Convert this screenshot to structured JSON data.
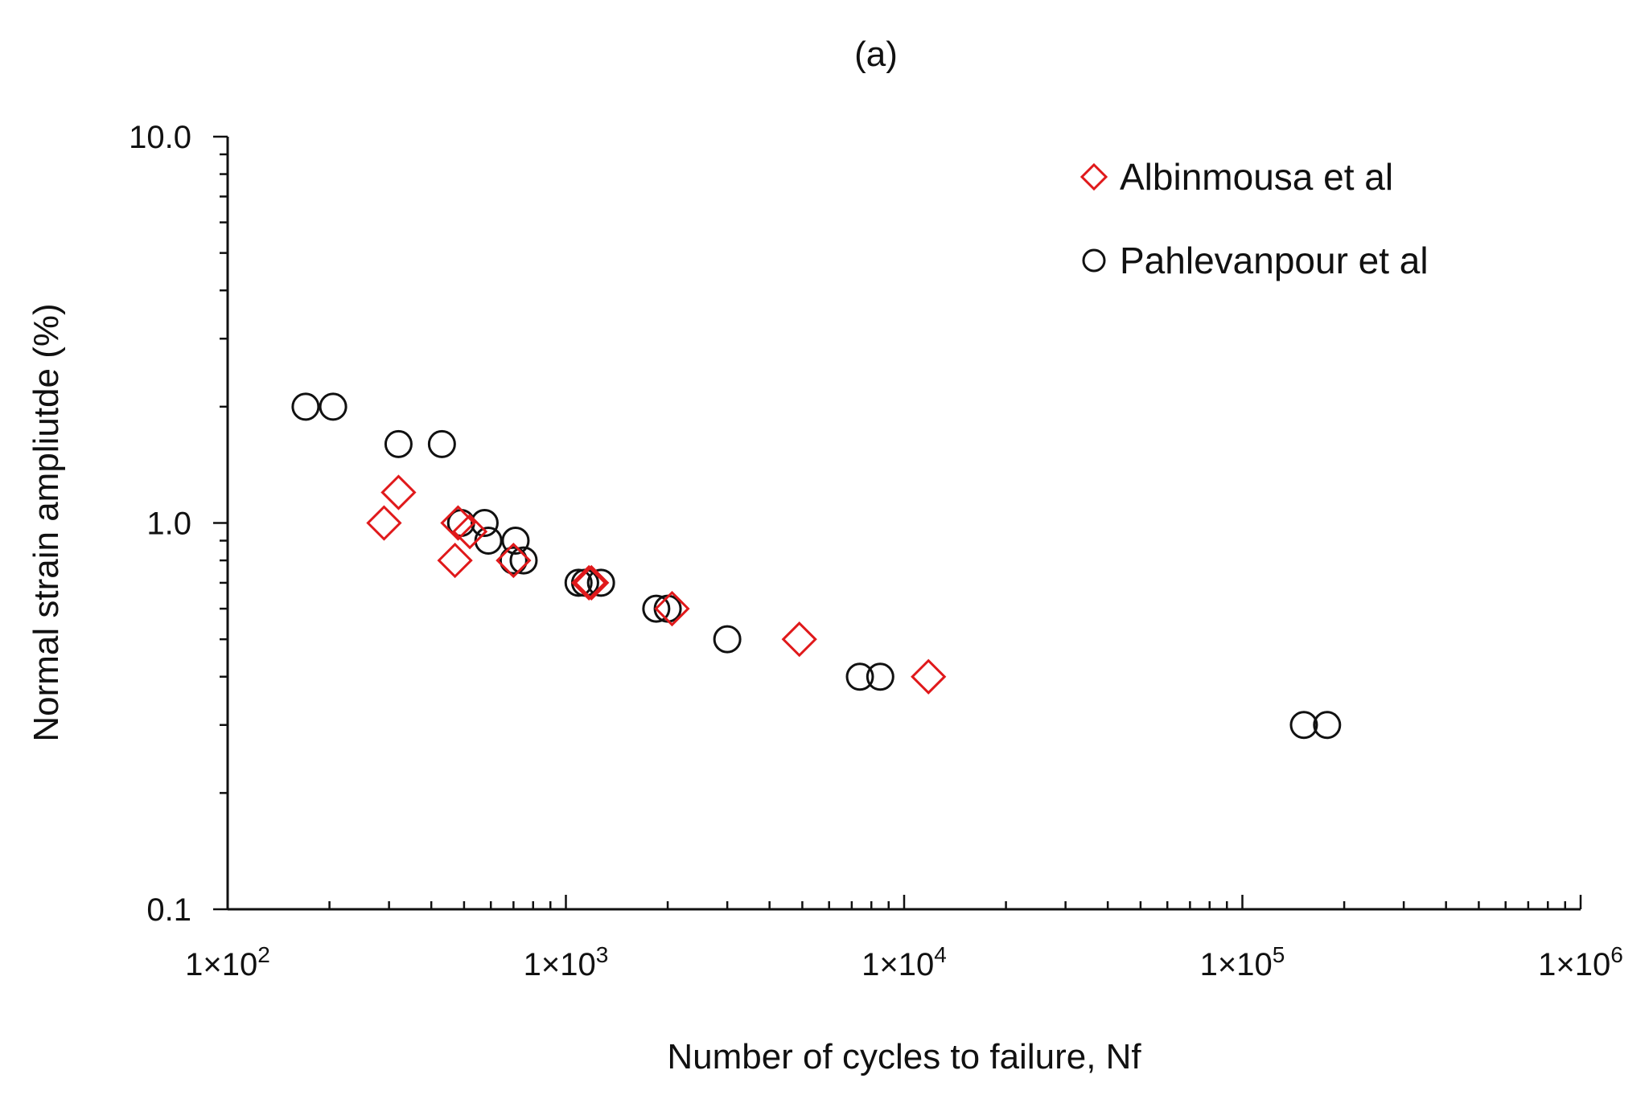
{
  "chart_data": {
    "type": "scatter",
    "title": "(a)",
    "xlabel": "Number of cycles to failure, Nf",
    "ylabel": "Normal strain ampliutde (%)",
    "xscale": "log",
    "yscale": "log",
    "xlim": [
      100,
      1000000
    ],
    "ylim": [
      0.1,
      10
    ],
    "x_ticks": [
      {
        "value": 100,
        "label": "1×10",
        "exp": "2"
      },
      {
        "value": 1000,
        "label": "1×10",
        "exp": "3"
      },
      {
        "value": 10000,
        "label": "1×10",
        "exp": "4"
      },
      {
        "value": 100000,
        "label": "1×10",
        "exp": "5"
      },
      {
        "value": 1000000,
        "label": "1×10",
        "exp": "6"
      }
    ],
    "y_ticks": [
      {
        "value": 0.1,
        "label": "0.1"
      },
      {
        "value": 1,
        "label": "1.0"
      },
      {
        "value": 10,
        "label": "10.0"
      }
    ],
    "legend_position": "top-right",
    "series": [
      {
        "name": "Albinmousa et al",
        "marker": "diamond",
        "color": "#e0191b",
        "points": [
          [
            290,
            1.0
          ],
          [
            320,
            1.2
          ],
          [
            470,
            0.8
          ],
          [
            480,
            1.0
          ],
          [
            520,
            0.95
          ],
          [
            700,
            0.8
          ],
          [
            1170,
            0.7
          ],
          [
            1190,
            0.7
          ],
          [
            2060,
            0.6
          ],
          [
            4900,
            0.5
          ],
          [
            11800,
            0.4
          ]
        ]
      },
      {
        "name": "Pahlevanpour et al",
        "marker": "circle",
        "color": "#111111",
        "points": [
          [
            170,
            2.0
          ],
          [
            205,
            2.0
          ],
          [
            320,
            1.6
          ],
          [
            430,
            1.6
          ],
          [
            490,
            1.0
          ],
          [
            575,
            1.0
          ],
          [
            590,
            0.9
          ],
          [
            700,
            0.8
          ],
          [
            710,
            0.9
          ],
          [
            750,
            0.8
          ],
          [
            1090,
            0.7
          ],
          [
            1140,
            0.7
          ],
          [
            1270,
            0.7
          ],
          [
            1850,
            0.6
          ],
          [
            2000,
            0.6
          ],
          [
            3000,
            0.5
          ],
          [
            7400,
            0.4
          ],
          [
            8500,
            0.4
          ],
          [
            152000,
            0.3
          ],
          [
            178000,
            0.3
          ]
        ]
      }
    ]
  }
}
